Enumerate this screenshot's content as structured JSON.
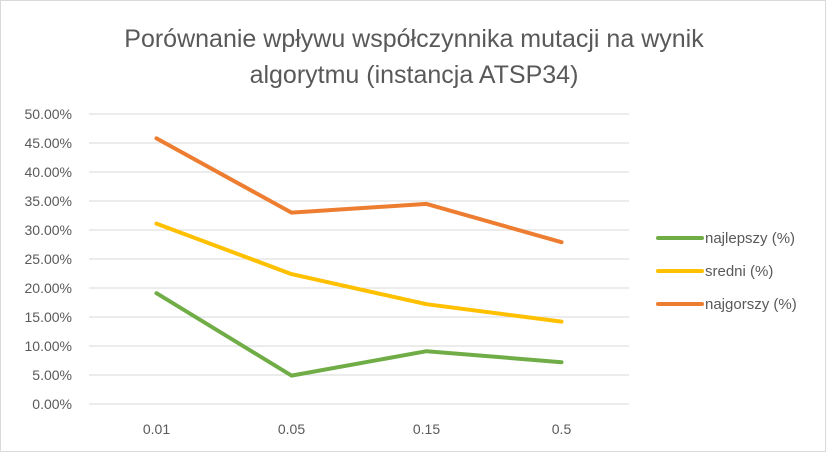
{
  "chart_data": {
    "type": "line",
    "title_line1": "Porównanie wpływu współczynnika mutacji na wynik",
    "title_line2": "algorytmu (instancja ATSP34)",
    "categories": [
      "0.01",
      "0.05",
      "0.15",
      "0.5"
    ],
    "y_ticks": [
      "0.00%",
      "5.00%",
      "10.00%",
      "15.00%",
      "20.00%",
      "25.00%",
      "30.00%",
      "35.00%",
      "40.00%",
      "45.00%",
      "50.00%"
    ],
    "ylim": [
      0,
      50
    ],
    "grid": true,
    "legend_position": "right",
    "series": [
      {
        "name": "najlepszy (%)",
        "color": "#70ad47",
        "values": [
          19.1,
          4.9,
          9.1,
          7.2
        ]
      },
      {
        "name": "sredni (%)",
        "color": "#ffc000",
        "values": [
          31.1,
          22.4,
          17.2,
          14.2
        ]
      },
      {
        "name": "najgorszy (%)",
        "color": "#ed7d31",
        "values": [
          45.8,
          33.0,
          34.5,
          27.9
        ]
      }
    ]
  }
}
